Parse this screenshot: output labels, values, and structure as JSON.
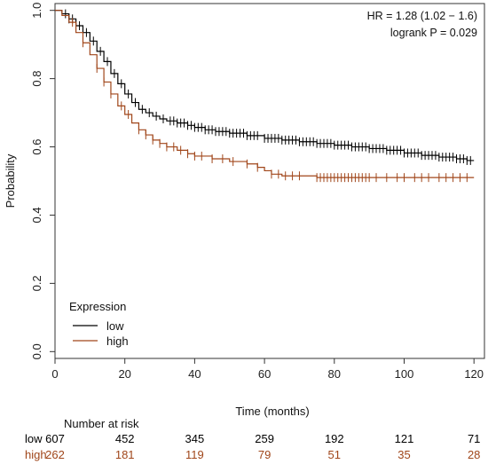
{
  "chart_data": {
    "type": "line",
    "subtype": "kaplan-meier",
    "xlabel": "Time (months)",
    "ylabel": "Probability",
    "xlim": [
      0,
      123
    ],
    "ylim": [
      -0.02,
      1.02
    ],
    "x_ticks": [
      0,
      20,
      40,
      60,
      80,
      100,
      120
    ],
    "y_ticks": [
      0.0,
      0.2,
      0.4,
      0.6,
      0.8,
      1.0
    ],
    "y_tick_labels": [
      "0.0",
      "0.2",
      "0.4",
      "0.6",
      "0.8",
      "1.0"
    ],
    "grid": false,
    "legend": {
      "title": "Expression",
      "placement": "bottom-left",
      "entries": [
        {
          "label": "low",
          "color": "#000000"
        },
        {
          "label": "high",
          "color": "#a0461a"
        }
      ]
    },
    "annotations": {
      "hr": "HR = 1.28 (1.02 − 1.6)",
      "logrank": "logrank P = 0.029"
    },
    "series": [
      {
        "name": "low",
        "color": "#000000",
        "x": [
          0,
          2,
          4,
          6,
          8,
          10,
          12,
          14,
          16,
          18,
          20,
          22,
          24,
          26,
          28,
          30,
          32,
          35,
          38,
          40,
          43,
          46,
          50,
          55,
          60,
          65,
          70,
          75,
          80,
          85,
          90,
          95,
          100,
          105,
          110,
          115,
          118,
          120
        ],
        "y": [
          1.0,
          0.99,
          0.975,
          0.955,
          0.935,
          0.91,
          0.88,
          0.85,
          0.815,
          0.785,
          0.755,
          0.73,
          0.71,
          0.7,
          0.69,
          0.682,
          0.676,
          0.67,
          0.663,
          0.657,
          0.65,
          0.645,
          0.64,
          0.633,
          0.625,
          0.62,
          0.615,
          0.61,
          0.605,
          0.6,
          0.595,
          0.59,
          0.582,
          0.575,
          0.57,
          0.565,
          0.56,
          0.56
        ],
        "censor_x": [
          3,
          4,
          5,
          7,
          9,
          11,
          13,
          15,
          17,
          19,
          21,
          23,
          25,
          27,
          29,
          31,
          33,
          34,
          35,
          36,
          37,
          38,
          39,
          40,
          41,
          42,
          43,
          44,
          45,
          46,
          47,
          48,
          49,
          50,
          51,
          52,
          53,
          54,
          55,
          56,
          57,
          58,
          60,
          61,
          62,
          63,
          64,
          65,
          66,
          67,
          68,
          69,
          70,
          71,
          72,
          73,
          74,
          75,
          76,
          77,
          78,
          79,
          80,
          81,
          82,
          83,
          84,
          85,
          86,
          87,
          88,
          89,
          90,
          91,
          92,
          93,
          94,
          95,
          96,
          97,
          98,
          99,
          100,
          101,
          102,
          103,
          104,
          105,
          106,
          107,
          108,
          109,
          110,
          111,
          112,
          113,
          114,
          115,
          116,
          117,
          118,
          119
        ]
      },
      {
        "name": "high",
        "color": "#a0461a",
        "x": [
          0,
          2,
          4,
          6,
          8,
          10,
          12,
          14,
          16,
          18,
          20,
          22,
          24,
          26,
          28,
          30,
          32,
          35,
          38,
          40,
          45,
          50,
          55,
          58,
          60,
          62,
          65,
          70,
          75,
          80,
          100,
          120
        ],
        "y": [
          1.0,
          0.985,
          0.965,
          0.935,
          0.905,
          0.87,
          0.83,
          0.79,
          0.755,
          0.72,
          0.695,
          0.67,
          0.65,
          0.635,
          0.62,
          0.61,
          0.6,
          0.59,
          0.58,
          0.573,
          0.565,
          0.557,
          0.55,
          0.54,
          0.53,
          0.52,
          0.515,
          0.515,
          0.51,
          0.51,
          0.51,
          0.51
        ],
        "censor_x": [
          5,
          8,
          12,
          14,
          16,
          19,
          21,
          24,
          26,
          28,
          30,
          32,
          34,
          36,
          38,
          40,
          42,
          45,
          48,
          51,
          55,
          58,
          62,
          64,
          66,
          68,
          70,
          75,
          76,
          77,
          78,
          79,
          80,
          81,
          82,
          83,
          84,
          85,
          86,
          87,
          88,
          89,
          90,
          92,
          95,
          98,
          100,
          103,
          105,
          107,
          110,
          112,
          114,
          116,
          118
        ]
      }
    ],
    "risk_table": {
      "title": "Number at risk",
      "times": [
        0,
        20,
        40,
        60,
        80,
        100,
        120
      ],
      "rows": [
        {
          "label": "low",
          "color": "#000000",
          "counts": [
            "607",
            "452",
            "345",
            "259",
            "192",
            "121",
            "71"
          ]
        },
        {
          "label": "high",
          "color": "#a0461a",
          "counts": [
            "262",
            "181",
            "119",
            "79",
            "51",
            "35",
            "28"
          ]
        }
      ]
    }
  }
}
